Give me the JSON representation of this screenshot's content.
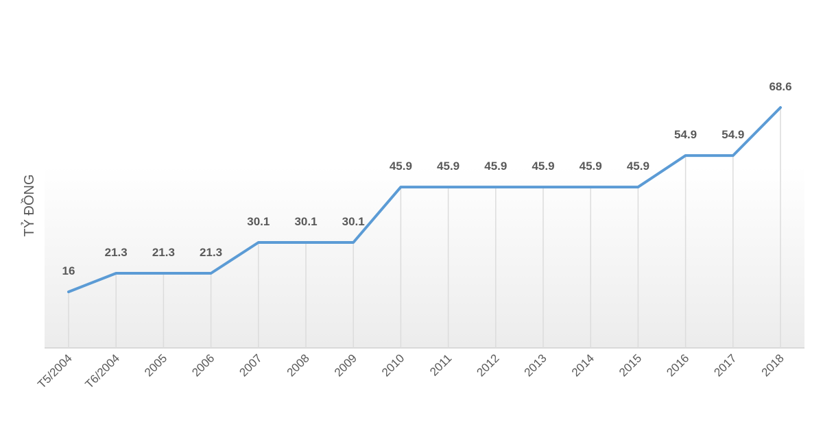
{
  "chart_data": {
    "type": "line",
    "ylabel": "TỶ ĐỒNG",
    "categories": [
      "T5/2004",
      "T6/2004",
      "2005",
      "2006",
      "2007",
      "2008",
      "2009",
      "2010",
      "2011",
      "2012",
      "2013",
      "2014",
      "2015",
      "2016",
      "2017",
      "2018"
    ],
    "values": [
      16,
      21.3,
      21.3,
      21.3,
      30.1,
      30.1,
      30.1,
      45.9,
      45.9,
      45.9,
      45.9,
      45.9,
      45.9,
      54.9,
      54.9,
      68.6
    ],
    "value_labels": [
      "16",
      "21.3",
      "21.3",
      "21.3",
      "30.1",
      "30.1",
      "30.1",
      "45.9",
      "45.9",
      "45.9",
      "45.9",
      "45.9",
      "45.9",
      "54.9",
      "54.9",
      "68.6"
    ],
    "ylim": [
      0,
      68.6
    ],
    "grid": "vertical lines",
    "line_color": "#5b9bd5",
    "label_color": "#595959"
  }
}
